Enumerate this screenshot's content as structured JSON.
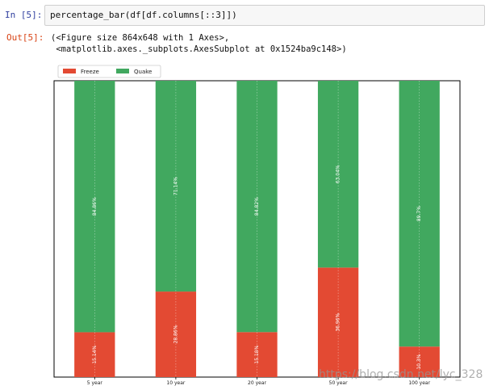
{
  "input_cell": {
    "prompt": "In  [5]:",
    "code": "percentage_bar(df[df.columns[::3]])"
  },
  "output_cell": {
    "prompt": "Out[5]:",
    "lines": [
      "(<Figure size 864x648 with 1 Axes>,",
      " <matplotlib.axes._subplots.AxesSubplot at 0x1524ba9c148>)"
    ]
  },
  "colors": {
    "freeze": "#e34a33",
    "quake": "#41a85f"
  },
  "chart_data": {
    "type": "bar",
    "stacked": true,
    "categories": [
      "5 year",
      "10 year",
      "20 year",
      "50 year",
      "100 year"
    ],
    "series": [
      {
        "name": "Freeze",
        "values": [
          15.14,
          28.86,
          15.18,
          36.96,
          10.3
        ],
        "labels": [
          "15.14%",
          "28.86%",
          "15.18%",
          "36.96%",
          "10.3%"
        ]
      },
      {
        "name": "Quake",
        "values": [
          84.86,
          71.14,
          84.82,
          63.04,
          89.7
        ],
        "labels": [
          "84.86%",
          "71.14%",
          "84.82%",
          "63.04%",
          "89.7%"
        ]
      }
    ],
    "ylim": [
      0,
      100
    ],
    "grid": true,
    "legend": "top-left",
    "title": "",
    "xlabel": "",
    "ylabel": ""
  },
  "watermark": "https://blog.csdn.net/lyc_328"
}
